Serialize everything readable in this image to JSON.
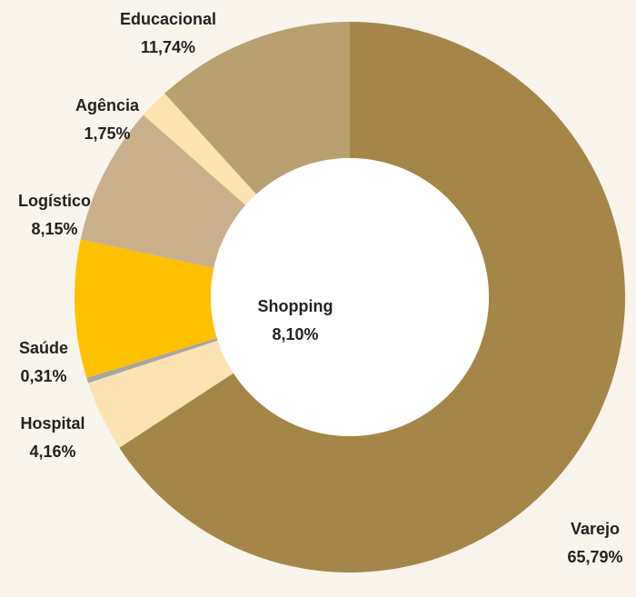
{
  "chart_data": {
    "type": "donut",
    "categories": [
      "Varejo",
      "Hospital",
      "Saúde",
      "Shopping",
      "Logístico",
      "Agência",
      "Educacional"
    ],
    "values": [
      65.79,
      4.16,
      0.31,
      8.1,
      8.15,
      1.75,
      11.74
    ],
    "value_labels": [
      "65,79%",
      "4,16%",
      "0,31%",
      "8,10%",
      "8,15%",
      "1,75%",
      "11,74%"
    ],
    "colors": [
      "#a68548",
      "#fde3b4",
      "#a6a6a6",
      "#ffc000",
      "#c9b08a",
      "#ffe3b0",
      "#b8a070"
    ]
  }
}
